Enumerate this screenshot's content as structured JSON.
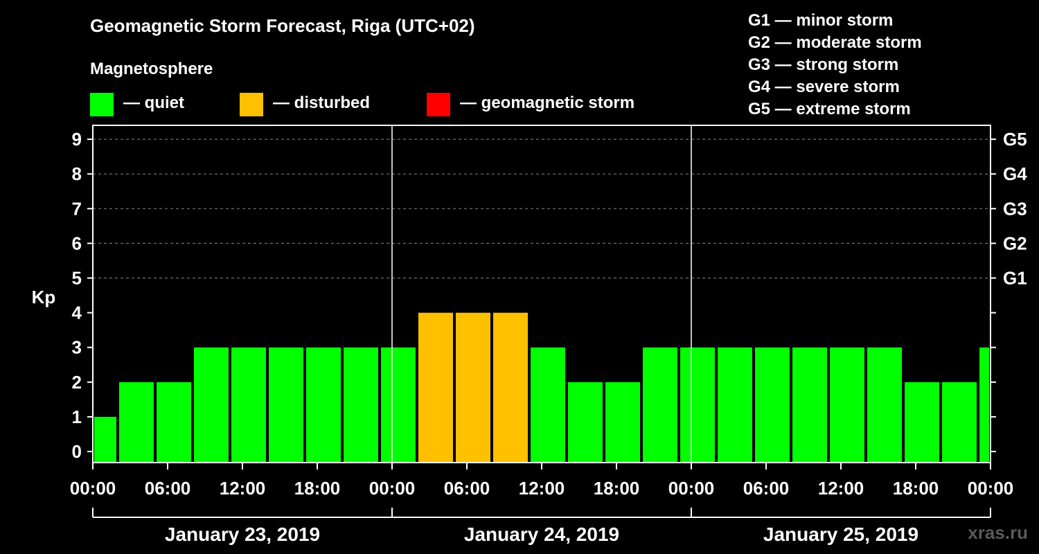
{
  "title": "Geomagnetic Storm Forecast, Riga (UTC+02)",
  "magnetosphere": {
    "title": "Magnetosphere",
    "legend": [
      {
        "label": "— quiet",
        "color": "#00ff00"
      },
      {
        "label": "— disturbed",
        "color": "#ffc000"
      },
      {
        "label": "— geomagnetic storm",
        "color": "#ff0000"
      }
    ]
  },
  "storm_scale": [
    "G1 — minor storm",
    "G2 — moderate storm",
    "G3 — strong storm",
    "G4 — severe storm",
    "G5 — extreme storm"
  ],
  "watermark": "xras.ru",
  "colors": {
    "quiet": "#00ff00",
    "disturbed": "#ffc000",
    "storm": "#ff0000",
    "background": "#000000",
    "axis": "#ffffff"
  },
  "chart_data": {
    "type": "bar",
    "ylabel": "Kp",
    "ylim": [
      0,
      9
    ],
    "yticks": [
      "0",
      "1",
      "2",
      "3",
      "4",
      "5",
      "6",
      "7",
      "8",
      "9"
    ],
    "g_ticks": [
      {
        "kp": 5,
        "label": "G1"
      },
      {
        "kp": 6,
        "label": "G2"
      },
      {
        "kp": 7,
        "label": "G3"
      },
      {
        "kp": 8,
        "label": "G4"
      },
      {
        "kp": 9,
        "label": "G5"
      }
    ],
    "xrange_hours": [
      0,
      72
    ],
    "xtick_labels": [
      "00:00",
      "06:00",
      "12:00",
      "18:00",
      "00:00",
      "06:00",
      "12:00",
      "18:00",
      "00:00",
      "06:00",
      "12:00",
      "18:00",
      "00:00"
    ],
    "days": [
      "January 23, 2019",
      "January 24, 2019",
      "January 25, 2019"
    ],
    "bars": [
      {
        "start": 0,
        "end": 2,
        "kp": 1,
        "level": "quiet"
      },
      {
        "start": 2,
        "end": 5,
        "kp": 2,
        "level": "quiet"
      },
      {
        "start": 5,
        "end": 8,
        "kp": 2,
        "level": "quiet"
      },
      {
        "start": 8,
        "end": 11,
        "kp": 3,
        "level": "quiet"
      },
      {
        "start": 11,
        "end": 14,
        "kp": 3,
        "level": "quiet"
      },
      {
        "start": 14,
        "end": 17,
        "kp": 3,
        "level": "quiet"
      },
      {
        "start": 17,
        "end": 20,
        "kp": 3,
        "level": "quiet"
      },
      {
        "start": 20,
        "end": 23,
        "kp": 3,
        "level": "quiet"
      },
      {
        "start": 23,
        "end": 26,
        "kp": 3,
        "level": "quiet"
      },
      {
        "start": 26,
        "end": 29,
        "kp": 4,
        "level": "disturbed"
      },
      {
        "start": 29,
        "end": 32,
        "kp": 4,
        "level": "disturbed"
      },
      {
        "start": 32,
        "end": 35,
        "kp": 4,
        "level": "disturbed"
      },
      {
        "start": 35,
        "end": 38,
        "kp": 3,
        "level": "quiet"
      },
      {
        "start": 38,
        "end": 41,
        "kp": 2,
        "level": "quiet"
      },
      {
        "start": 41,
        "end": 44,
        "kp": 2,
        "level": "quiet"
      },
      {
        "start": 44,
        "end": 47,
        "kp": 3,
        "level": "quiet"
      },
      {
        "start": 47,
        "end": 50,
        "kp": 3,
        "level": "quiet"
      },
      {
        "start": 50,
        "end": 53,
        "kp": 3,
        "level": "quiet"
      },
      {
        "start": 53,
        "end": 56,
        "kp": 3,
        "level": "quiet"
      },
      {
        "start": 56,
        "end": 59,
        "kp": 3,
        "level": "quiet"
      },
      {
        "start": 59,
        "end": 62,
        "kp": 3,
        "level": "quiet"
      },
      {
        "start": 62,
        "end": 65,
        "kp": 3,
        "level": "quiet"
      },
      {
        "start": 65,
        "end": 68,
        "kp": 2,
        "level": "quiet"
      },
      {
        "start": 68,
        "end": 71,
        "kp": 2,
        "level": "quiet"
      },
      {
        "start": 71,
        "end": 72,
        "kp": 3,
        "level": "quiet"
      }
    ]
  }
}
